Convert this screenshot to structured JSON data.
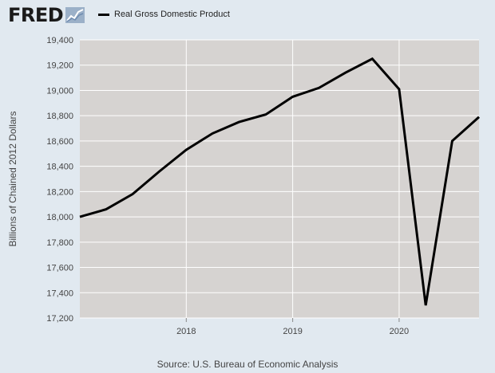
{
  "header": {
    "logo_text": "FRED",
    "logo_icon": "fred-chart-icon"
  },
  "legend": {
    "label": "Real Gross Domestic Product",
    "color": "#000000"
  },
  "source": "Source: U.S. Bureau of Economic Analysis",
  "chart_data": {
    "type": "line",
    "title": "",
    "xlabel": "",
    "ylabel": "Billions of Chained 2012 Dollars",
    "ylim": [
      17200,
      19400
    ],
    "yticks": [
      17200,
      17400,
      17600,
      17800,
      18000,
      18200,
      18400,
      18600,
      18800,
      19000,
      19200,
      19400
    ],
    "ytick_labels": [
      "17,200",
      "17,400",
      "17,600",
      "17,800",
      "18,000",
      "18,200",
      "18,400",
      "18,600",
      "18,800",
      "19,000",
      "19,200",
      "19,400"
    ],
    "xlim": [
      "2017-01-01",
      "2020-10-01"
    ],
    "xticks": [
      "2018-01-01",
      "2019-01-01",
      "2020-01-01"
    ],
    "xtick_labels": [
      "2018",
      "2019",
      "2020"
    ],
    "grid": true,
    "plot_background": "#d6d3d1",
    "line_color": "#000000",
    "series": [
      {
        "name": "Real Gross Domestic Product",
        "x": [
          "2017-01-01",
          "2017-04-01",
          "2017-07-01",
          "2017-10-01",
          "2018-01-01",
          "2018-04-01",
          "2018-07-01",
          "2018-10-01",
          "2019-01-01",
          "2019-04-01",
          "2019-07-01",
          "2019-10-01",
          "2020-01-01",
          "2020-04-01",
          "2020-07-01",
          "2020-10-01"
        ],
        "values": [
          18000,
          18060,
          18180,
          18360,
          18530,
          18660,
          18750,
          18810,
          18950,
          19020,
          19140,
          19250,
          19010,
          17300,
          18600,
          18790
        ]
      }
    ]
  }
}
